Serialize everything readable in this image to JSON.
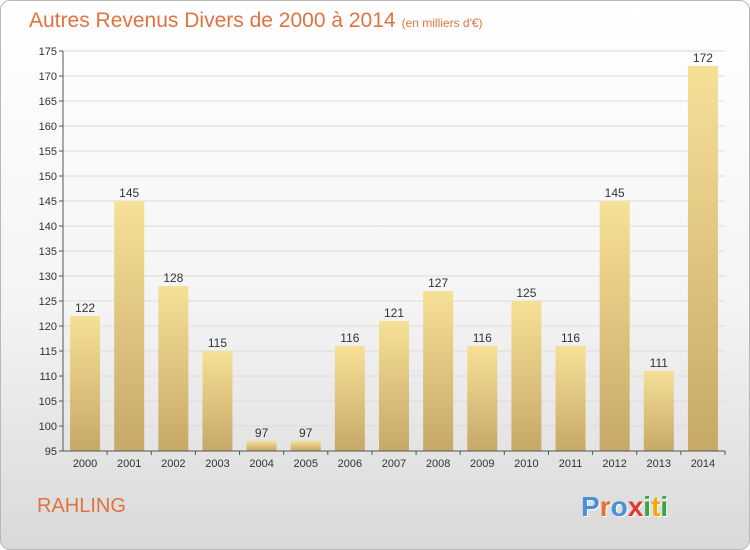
{
  "chart_data": {
    "type": "bar",
    "title": "Autres Revenus Divers de 2000 à 2014",
    "subtitle": "(en milliers d'€)",
    "categories": [
      "2000",
      "2001",
      "2002",
      "2003",
      "2004",
      "2005",
      "2006",
      "2007",
      "2008",
      "2009",
      "2010",
      "2011",
      "2012",
      "2013",
      "2014"
    ],
    "values": [
      122,
      145,
      128,
      115,
      97,
      97,
      116,
      121,
      127,
      116,
      125,
      116,
      145,
      111,
      172
    ],
    "ylim": [
      95,
      175
    ],
    "yticks": [
      95,
      100,
      105,
      110,
      115,
      120,
      125,
      130,
      135,
      140,
      145,
      150,
      155,
      160,
      165,
      170,
      175
    ],
    "grid": true,
    "colors": {
      "bar_light": "#f6e096",
      "bar_dark": "#c7a867",
      "text": "#e0733f"
    }
  },
  "footer": {
    "place": "RAHLING",
    "logo": [
      "P",
      "r",
      "o",
      "x",
      "i",
      "t",
      "i"
    ],
    "logo_colors": [
      "#4a90d9",
      "#e8702a",
      "#4a90d9",
      "#e03a2e",
      "#3aa640",
      "#f2a900",
      "#3aa640"
    ]
  }
}
